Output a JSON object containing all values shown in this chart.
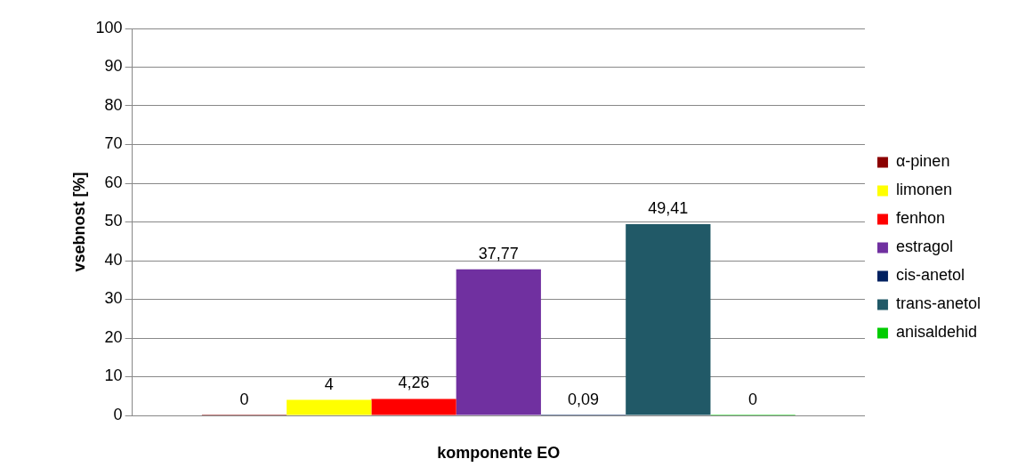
{
  "chart_data": {
    "type": "bar",
    "xlabel": "komponente EO",
    "ylabel": "vsebnost [%]",
    "categories": [
      null
    ],
    "series": [
      {
        "name": "α-pinen",
        "color": "#8b0000",
        "values": [
          0
        ],
        "value_labels": [
          "0"
        ]
      },
      {
        "name": "limonen",
        "color": "#ffff00",
        "values": [
          4
        ],
        "value_labels": [
          "4"
        ]
      },
      {
        "name": "fenhon",
        "color": "#ff0000",
        "values": [
          4.26
        ],
        "value_labels": [
          "4,26"
        ]
      },
      {
        "name": "estragol",
        "color": "#7030a0",
        "values": [
          37.77
        ],
        "value_labels": [
          "37,77"
        ]
      },
      {
        "name": "cis-anetol",
        "color": "#002060",
        "values": [
          0.09
        ],
        "value_labels": [
          "0,09"
        ]
      },
      {
        "name": "trans-anetol",
        "color": "#215967",
        "values": [
          49.41
        ],
        "value_labels": [
          "49,41"
        ]
      },
      {
        "name": "anisaldehid",
        "color": "#00cc00",
        "values": [
          0
        ],
        "value_labels": [
          "0"
        ]
      }
    ],
    "ylim": [
      0,
      100
    ],
    "yticks": [
      0,
      10,
      20,
      30,
      40,
      50,
      60,
      70,
      80,
      90,
      100
    ],
    "grid": "y",
    "legend": "right"
  }
}
